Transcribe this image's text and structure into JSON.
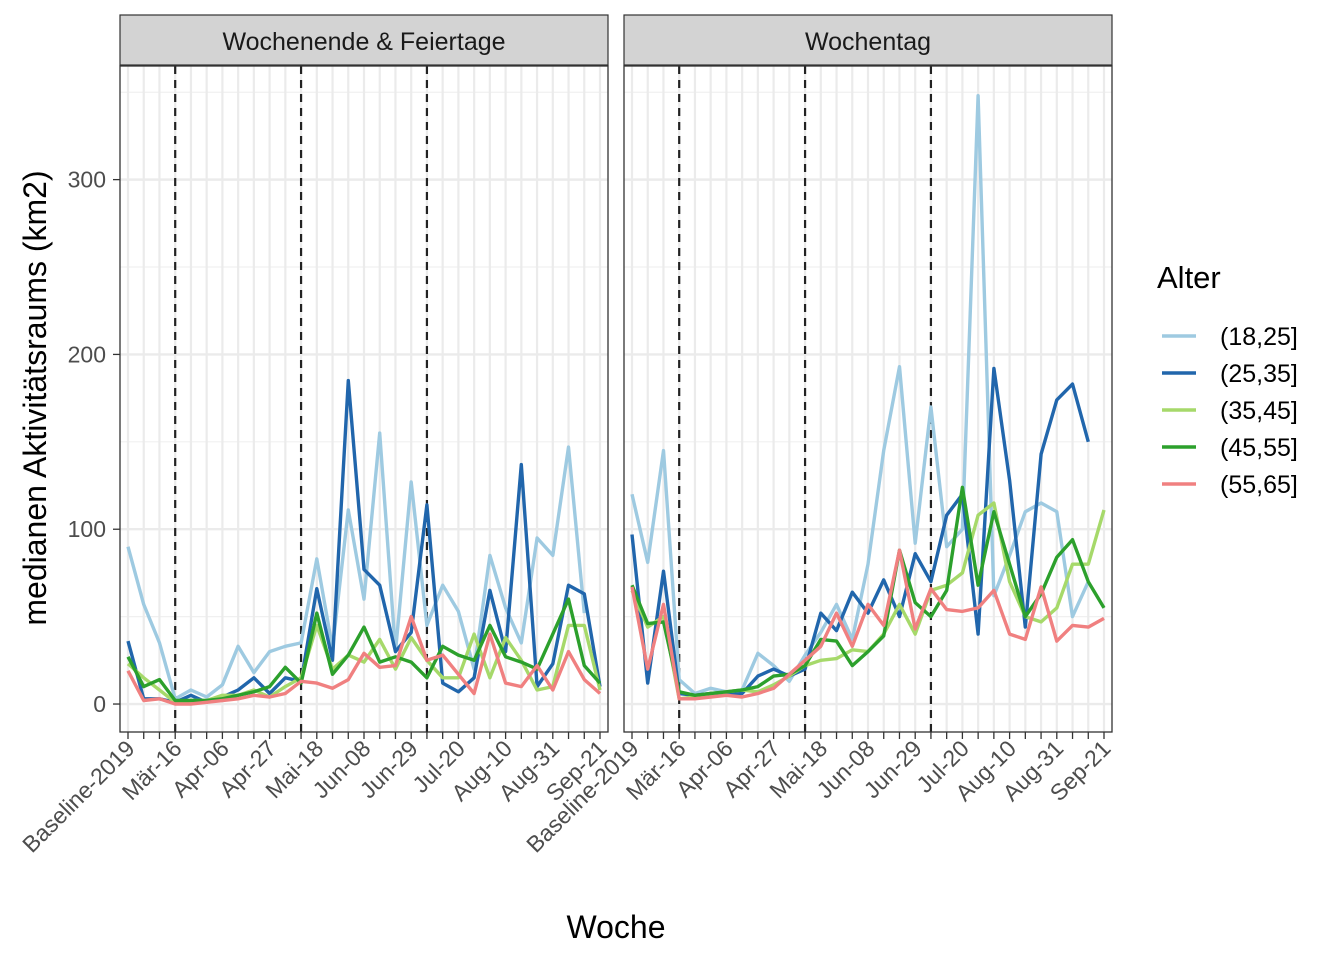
{
  "chart_data": {
    "type": "line",
    "title": "",
    "xlabel": "Woche",
    "ylabel": "medianen Aktivitätsraums (km2)",
    "ylim": [
      -16,
      365
    ],
    "yticks": [
      0,
      100,
      200,
      300
    ],
    "grid": true,
    "legend_title": "Alter",
    "legend_position": "right",
    "x_tick_labels": [
      "Baseline-2019",
      "Mär-16",
      "Apr-06",
      "Apr-27",
      "Mai-18",
      "Jun-08",
      "Jun-29",
      "Jul-20",
      "Aug-10",
      "Aug-31",
      "Sep-21"
    ],
    "vlines_at_index": [
      3,
      11,
      19
    ],
    "panels": [
      {
        "strip": "Wochenende & Feiertage",
        "series": [
          {
            "name": "(18,25]",
            "color": "#9ecae1",
            "values": [
              90,
              57,
              35,
              3,
              8,
              4,
              11,
              33,
              18,
              30,
              33,
              35,
              83,
              32,
              111,
              60,
              155,
              30,
              127,
              45,
              68,
              53,
              20,
              85,
              55,
              35,
              95,
              85,
              147,
              52
            ]
          },
          {
            "name": "(25,35]",
            "color": "#2166ac",
            "values": [
              36,
              3,
              3,
              1,
              5,
              1,
              4,
              8,
              15,
              6,
              15,
              13,
              66,
              25,
              185,
              77,
              68,
              30,
              41,
              114,
              12,
              7,
              15,
              65,
              30,
              137,
              10,
              23,
              68,
              63,
              10
            ]
          },
          {
            "name": "(35,45]",
            "color": "#a6d96a",
            "values": [
              23,
              15,
              8,
              1,
              2,
              2,
              5,
              5,
              8,
              4,
              10,
              15,
              45,
              20,
              28,
              24,
              37,
              20,
              38,
              25,
              15,
              15,
              40,
              15,
              38,
              25,
              8,
              10,
              45,
              45,
              8
            ]
          },
          {
            "name": "(45,55]",
            "color": "#2ca02c",
            "values": [
              27,
              10,
              14,
              2,
              2,
              2,
              3,
              5,
              7,
              10,
              21,
              12,
              52,
              17,
              28,
              44,
              24,
              27,
              24,
              15,
              33,
              28,
              25,
              45,
              27,
              24,
              20,
              40,
              60,
              22,
              12
            ]
          },
          {
            "name": "(55,65]",
            "color": "#f08080",
            "values": [
              19,
              2,
              3,
              0,
              0,
              1,
              2,
              3,
              5,
              4,
              6,
              13,
              12,
              9,
              14,
              29,
              21,
              22,
              50,
              25,
              28,
              17,
              6,
              40,
              12,
              10,
              22,
              8,
              30,
              14,
              6
            ]
          }
        ]
      },
      {
        "strip": "Wochentag",
        "series": [
          {
            "name": "(18,25]",
            "color": "#9ecae1",
            "values": [
              120,
              81,
              145,
              14,
              6,
              9,
              7,
              8,
              29,
              22,
              13,
              28,
              41,
              57,
              37,
              80,
              145,
              193,
              92,
              170,
              90,
              100,
              348,
              62,
              85,
              110,
              115,
              110,
              50,
              70
            ]
          },
          {
            "name": "(25,35]",
            "color": "#2166ac",
            "values": [
              97,
              12,
              76,
              6,
              5,
              6,
              6,
              6,
              16,
              20,
              16,
              20,
              52,
              42,
              64,
              52,
              71,
              50,
              86,
              70,
              108,
              120,
              40,
              192,
              128,
              44,
              143,
              174,
              183,
              150
            ]
          },
          {
            "name": "(35,45]",
            "color": "#a6d96a",
            "values": [
              65,
              44,
              50,
              3,
              4,
              6,
              7,
              8,
              7,
              11,
              16,
              22,
              25,
              26,
              31,
              30,
              40,
              57,
              40,
              65,
              68,
              75,
              108,
              115,
              70,
              50,
              47,
              55,
              80,
              80,
              111
            ]
          },
          {
            "name": "(45,55]",
            "color": "#2ca02c",
            "values": [
              68,
              46,
              47,
              7,
              5,
              6,
              7,
              8,
              10,
              16,
              17,
              22,
              37,
              36,
              22,
              30,
              39,
              88,
              58,
              50,
              65,
              124,
              68,
              110,
              80,
              50,
              63,
              84,
              94,
              70,
              55
            ]
          },
          {
            "name": "(55,65]",
            "color": "#f08080",
            "values": [
              67,
              20,
              57,
              3,
              3,
              4,
              5,
              4,
              6,
              9,
              17,
              25,
              33,
              52,
              33,
              57,
              45,
              88,
              43,
              66,
              54,
              53,
              55,
              65,
              40,
              37,
              67,
              36,
              45,
              44,
              49
            ]
          }
        ]
      }
    ]
  }
}
